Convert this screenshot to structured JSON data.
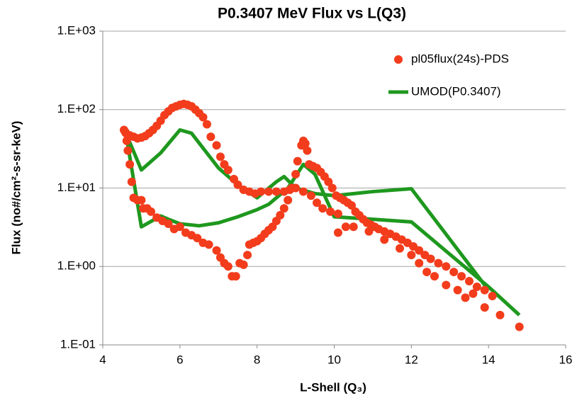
{
  "chart_data": {
    "type": "scatter",
    "title": "P0.3407 MeV Flux vs L(Q3)",
    "x_label": "L-Shell (Q₃)",
    "y_label": "Flux (no#/cm²-s-sr-keV)",
    "xlim": [
      4,
      16
    ],
    "xticks": [
      4,
      6,
      8,
      10,
      12,
      14,
      16
    ],
    "ylim": [
      0.1,
      1000
    ],
    "yticks": [
      {
        "value": 0.1,
        "label": "1.E-01"
      },
      {
        "value": 1,
        "label": "1.E+00"
      },
      {
        "value": 10,
        "label": "1.E+01"
      },
      {
        "value": 100,
        "label": "1.E+02"
      },
      {
        "value": 1000,
        "label": "1.E+03"
      }
    ],
    "log_y": true,
    "grid": true,
    "legend": "upper right",
    "series": [
      {
        "name": "pl05flux(24s)-PDS",
        "type": "scatter",
        "color": "#f23c1c",
        "x": [
          4.55,
          4.58,
          4.6,
          4.7,
          4.8,
          4.9,
          5.0,
          5.1,
          5.2,
          5.3,
          5.4,
          5.5,
          5.6,
          5.7,
          5.8,
          5.9,
          6.0,
          6.1,
          6.2,
          6.3,
          6.4,
          6.5,
          6.6,
          6.7,
          6.8,
          6.95,
          7.05,
          7.15,
          7.25,
          7.4,
          7.5,
          7.65,
          7.8,
          7.95,
          8.1,
          8.3,
          8.5,
          8.7,
          8.85,
          9.0,
          9.2,
          9.4,
          9.55,
          9.7,
          9.9,
          10.1,
          10.3,
          4.62,
          4.65,
          4.7,
          4.75,
          4.8,
          4.9,
          5.0,
          5.05,
          5.15,
          5.25,
          5.4,
          5.55,
          5.7,
          5.85,
          6.0,
          6.15,
          6.3,
          6.45,
          6.6,
          6.75,
          6.95,
          7.05,
          7.15,
          7.25,
          7.35,
          7.45,
          7.55,
          7.65,
          7.75,
          7.8,
          7.9,
          8.0,
          8.1,
          8.2,
          8.3,
          8.4,
          8.5,
          8.6,
          8.7,
          8.8,
          8.9,
          9.0,
          9.05,
          9.15,
          9.2,
          9.25,
          9.3,
          9.35,
          9.45,
          9.55,
          9.65,
          9.75,
          9.85,
          9.95,
          10.05,
          10.15,
          10.25,
          10.35,
          10.45,
          10.55,
          10.65,
          10.75,
          10.85,
          10.95,
          11.05,
          11.15,
          11.3,
          11.45,
          11.6,
          11.75,
          11.9,
          12.05,
          12.2,
          12.35,
          12.5,
          12.7,
          12.9,
          13.1,
          13.3,
          13.5,
          13.7,
          13.9,
          14.1,
          10.1,
          10.5,
          10.9,
          11.3,
          11.7,
          12.0,
          12.2,
          12.4,
          12.6,
          12.9,
          13.2,
          13.4,
          13.6,
          13.9,
          14.3,
          14.8
        ],
        "values": [
          55,
          52,
          50,
          47,
          45,
          43,
          44,
          46,
          50,
          55,
          62,
          72,
          85,
          95,
          105,
          110,
          115,
          118,
          115,
          110,
          100,
          90,
          80,
          65,
          45,
          35,
          25,
          20,
          17,
          13,
          11,
          9.5,
          9,
          8.5,
          9,
          9,
          9,
          9,
          9.5,
          10,
          9,
          8,
          6.5,
          5.5,
          5,
          4.7,
          3.2,
          40,
          30,
          20,
          12,
          7.5,
          7,
          7,
          5.5,
          5.5,
          5,
          4.2,
          3.8,
          3.5,
          3,
          3.2,
          2.7,
          2.5,
          2.3,
          2.0,
          1.9,
          1.6,
          1.3,
          1.1,
          1.0,
          0.75,
          0.75,
          1.1,
          1.05,
          1.4,
          1.9,
          2.0,
          2.1,
          2.3,
          2.6,
          2.9,
          3.2,
          3.8,
          4.5,
          5.5,
          7,
          10,
          15,
          22,
          35,
          40,
          37,
          30,
          20,
          19,
          18,
          16,
          14,
          12,
          10,
          8,
          7.5,
          7,
          6.5,
          6,
          5,
          4.5,
          4,
          3.6,
          3.4,
          3.2,
          3.0,
          2.8,
          2.6,
          2.4,
          2.2,
          2.0,
          1.8,
          1.6,
          1.4,
          1.25,
          1.1,
          1.0,
          0.85,
          0.75,
          0.65,
          0.55,
          0.5,
          0.42,
          2.7,
          3.2,
          2.8,
          2.2,
          1.7,
          1.4,
          1.1,
          0.85,
          0.75,
          0.58,
          0.5,
          0.4,
          0.45,
          0.3,
          0.24,
          0.17
        ]
      },
      {
        "name": "UMOD(P0.3407)",
        "type": "line",
        "color": "#1e981e",
        "x": [
          14.0,
          12.0,
          11.0,
          10.0,
          9.5,
          9.0,
          8.7,
          8.5,
          8.0,
          7.5,
          7.0,
          6.3,
          6.0,
          5.5,
          5.0,
          4.6,
          4.7,
          5.0,
          5.5,
          5.7,
          6.0,
          6.5,
          7.0,
          7.5,
          8.0,
          8.3,
          8.5,
          8.8,
          9.2,
          9.5,
          10.0,
          11.0,
          12.0,
          14.0,
          14.8
        ],
        "values": [
          0.5,
          9.8,
          9,
          8.0,
          8.5,
          10,
          14,
          12,
          7.5,
          11,
          18,
          50,
          55,
          28,
          17,
          50,
          25,
          3.2,
          4.4,
          4.0,
          3.5,
          3.3,
          3.6,
          4.3,
          5.3,
          6.2,
          7.5,
          10,
          20,
          15,
          4.3,
          4.0,
          3.7,
          0.55,
          0.24
        ]
      }
    ]
  }
}
